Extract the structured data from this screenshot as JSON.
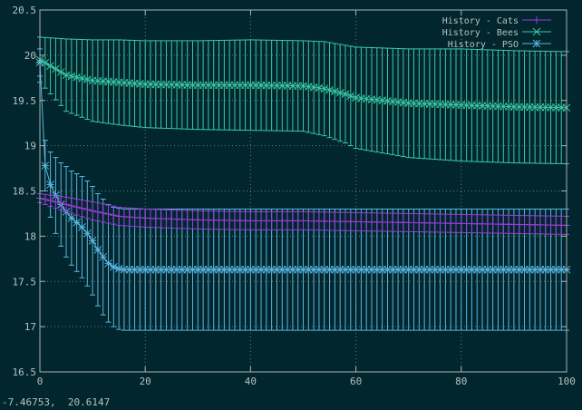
{
  "status_bar": {
    "coordinates": "-7.46753,  20.6147"
  },
  "colors": {
    "background": "#01262d",
    "axis": "#aab4b4",
    "grid": "#6d7a7a",
    "text": "#b9c0c0"
  },
  "chart_data": {
    "type": "line",
    "title": "",
    "xlabel": "",
    "ylabel": "",
    "xlim": [
      0,
      100
    ],
    "ylim": [
      16.5,
      20.5
    ],
    "grid": true,
    "legend": "top-right",
    "x_ticks": [
      0,
      20,
      40,
      60,
      80,
      100
    ],
    "y_ticks": [
      16.5,
      17,
      17.5,
      18,
      18.5,
      19,
      19.5,
      20,
      20.5
    ],
    "x_tick_labels": [
      "0",
      "20",
      "40",
      "60",
      "80",
      "100"
    ],
    "y_tick_labels": [
      "16.5",
      "17",
      "17.5",
      "18",
      "18.5",
      "19",
      "19.5",
      "20",
      "20.5"
    ],
    "series": [
      {
        "name": "History - Cats",
        "color": "#9a3cd8",
        "marker": "plus",
        "x": [
          0,
          5,
          10,
          15,
          20,
          30,
          40,
          50,
          60,
          70,
          80,
          90,
          100
        ],
        "y": [
          18.42,
          18.35,
          18.28,
          18.22,
          18.2,
          18.18,
          18.17,
          18.17,
          18.16,
          18.15,
          18.14,
          18.13,
          18.12
        ],
        "error": [
          0.05,
          0.08,
          0.1,
          0.1,
          0.1,
          0.1,
          0.1,
          0.1,
          0.1,
          0.1,
          0.1,
          0.1,
          0.1
        ]
      },
      {
        "name": "History - Bees",
        "color": "#3bc9a6",
        "marker": "cross",
        "x": [
          0,
          5,
          10,
          15,
          20,
          30,
          40,
          50,
          54,
          58,
          60,
          65,
          70,
          80,
          90,
          100
        ],
        "y": [
          19.95,
          19.78,
          19.72,
          19.7,
          19.68,
          19.67,
          19.67,
          19.66,
          19.63,
          19.57,
          19.53,
          19.5,
          19.47,
          19.45,
          19.43,
          19.42
        ],
        "error": [
          0.25,
          0.4,
          0.45,
          0.47,
          0.48,
          0.49,
          0.5,
          0.5,
          0.52,
          0.54,
          0.56,
          0.58,
          0.6,
          0.62,
          0.62,
          0.62
        ]
      },
      {
        "name": "History - PSO",
        "color": "#5ab6e0",
        "marker": "star",
        "x": [
          0,
          1,
          2,
          3,
          4,
          5,
          6,
          7,
          8,
          9,
          10,
          11,
          12,
          13,
          14,
          15,
          16,
          17,
          20,
          30,
          40,
          50,
          60,
          70,
          80,
          90,
          100
        ],
        "y": [
          19.92,
          18.78,
          18.57,
          18.45,
          18.35,
          18.27,
          18.2,
          18.15,
          18.1,
          18.03,
          17.95,
          17.85,
          17.77,
          17.7,
          17.66,
          17.64,
          17.63,
          17.63,
          17.63,
          17.63,
          17.63,
          17.63,
          17.63,
          17.63,
          17.63,
          17.63,
          17.63
        ],
        "error": [
          0.15,
          0.28,
          0.36,
          0.42,
          0.46,
          0.5,
          0.52,
          0.54,
          0.56,
          0.58,
          0.6,
          0.62,
          0.64,
          0.65,
          0.66,
          0.67,
          0.67,
          0.67,
          0.67,
          0.67,
          0.67,
          0.67,
          0.67,
          0.67,
          0.67,
          0.67,
          0.67
        ]
      }
    ]
  }
}
